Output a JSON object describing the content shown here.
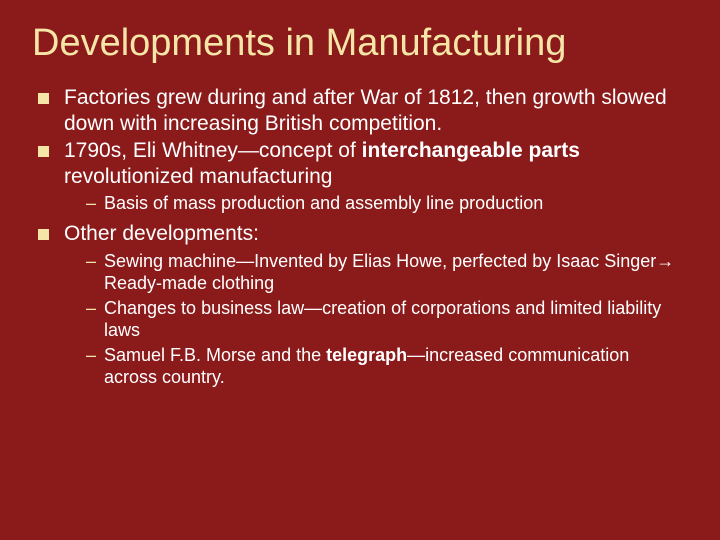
{
  "background_color": "#8b1a1a",
  "title_color": "#f5e6a8",
  "text_color": "#ffffff",
  "bullet_color": "#f5e6a8",
  "title_fontsize": 38,
  "body_fontsize": 21,
  "sub_fontsize": 18,
  "title": "Developments in Manufacturing",
  "bullets": [
    {
      "text_pre": "Factories grew during and after War of 1812, then growth slowed down with increasing British competition.",
      "bold": "",
      "text_post": "",
      "sub": []
    },
    {
      "text_pre": "1790s, Eli Whitney—concept of ",
      "bold": "interchangeable parts",
      "text_post": " revolutionized manufacturing",
      "sub": [
        {
          "text_pre": "Basis of mass production and assembly line production",
          "bold": "",
          "text_post": ""
        }
      ]
    },
    {
      "text_pre": "Other developments:",
      "bold": "",
      "text_post": "",
      "sub": [
        {
          "text_pre": "Sewing machine—Invented by Elias Howe, perfected by Isaac Singer→ Ready-made clothing",
          "bold": "",
          "text_post": ""
        },
        {
          "text_pre": "Changes to business law—creation of corporations and limited liability laws",
          "bold": "",
          "text_post": ""
        },
        {
          "text_pre": "Samuel F.B. Morse and the ",
          "bold": "telegraph",
          "text_post": "—increased communication across country."
        }
      ]
    }
  ]
}
